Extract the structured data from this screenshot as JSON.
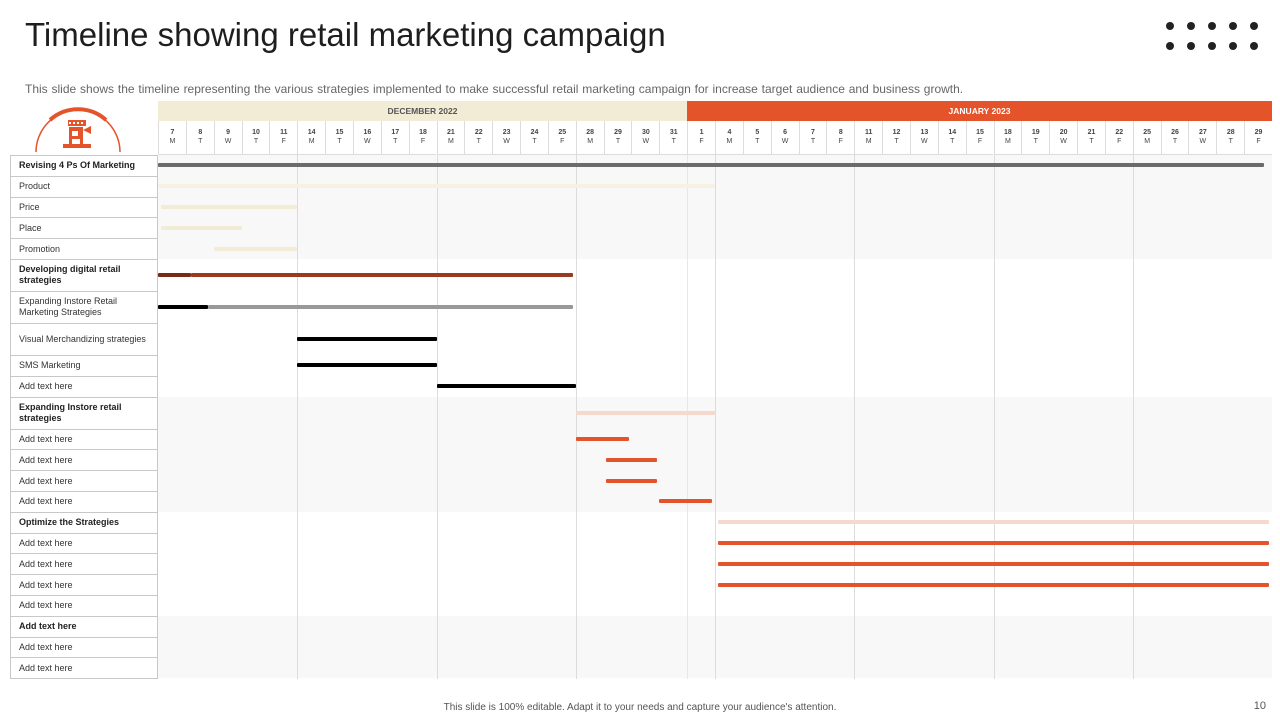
{
  "slide": {
    "title": "Timeline showing retail marketing campaign",
    "subtitle": "This slide shows the timeline representing the various strategies implemented to make successful retail marketing campaign for increase target audience and business growth.",
    "footer": "This slide is 100% editable. Adapt it to your needs and capture your audience's attention.",
    "page_number": "10"
  },
  "colors": {
    "accent": "#e5532a",
    "accent_light": "#f6d8cc",
    "beige": "#f2ecd7",
    "dark_brown": "#9a3b1f",
    "dark_gray": "#6b6b6b",
    "mid_gray": "#999999",
    "black": "#000000"
  },
  "chart_data": {
    "type": "gantt",
    "months": [
      {
        "label": "DECEMBER 2022",
        "start_index": 0,
        "end_index": 18
      },
      {
        "label": "JANUARY  2023",
        "start_index": 19,
        "end_index": 39
      }
    ],
    "days": [
      {
        "d": "7",
        "w": "M"
      },
      {
        "d": "8",
        "w": "T"
      },
      {
        "d": "9",
        "w": "W"
      },
      {
        "d": "10",
        "w": "T"
      },
      {
        "d": "11",
        "w": "F"
      },
      {
        "d": "14",
        "w": "M"
      },
      {
        "d": "15",
        "w": "T"
      },
      {
        "d": "16",
        "w": "W"
      },
      {
        "d": "17",
        "w": "T"
      },
      {
        "d": "18",
        "w": "F"
      },
      {
        "d": "21",
        "w": "M"
      },
      {
        "d": "22",
        "w": "T"
      },
      {
        "d": "23",
        "w": "W"
      },
      {
        "d": "24",
        "w": "T"
      },
      {
        "d": "25",
        "w": "F"
      },
      {
        "d": "28",
        "w": "M"
      },
      {
        "d": "29",
        "w": "T"
      },
      {
        "d": "30",
        "w": "W"
      },
      {
        "d": "31",
        "w": "T"
      },
      {
        "d": "1",
        "w": "F"
      },
      {
        "d": "4",
        "w": "M"
      },
      {
        "d": "5",
        "w": "T"
      },
      {
        "d": "6",
        "w": "W"
      },
      {
        "d": "7",
        "w": "T"
      },
      {
        "d": "8",
        "w": "F"
      },
      {
        "d": "11",
        "w": "M"
      },
      {
        "d": "12",
        "w": "T"
      },
      {
        "d": "13",
        "w": "W"
      },
      {
        "d": "14",
        "w": "T"
      },
      {
        "d": "15",
        "w": "F"
      },
      {
        "d": "18",
        "w": "M"
      },
      {
        "d": "19",
        "w": "T"
      },
      {
        "d": "20",
        "w": "W"
      },
      {
        "d": "21",
        "w": "T"
      },
      {
        "d": "22",
        "w": "F"
      },
      {
        "d": "25",
        "w": "M"
      },
      {
        "d": "26",
        "w": "T"
      },
      {
        "d": "27",
        "w": "W"
      },
      {
        "d": "28",
        "w": "T"
      },
      {
        "d": "29",
        "w": "F"
      }
    ],
    "rows": [
      {
        "label": "Revising 4 Ps Of Marketing",
        "bold": true,
        "tall": false,
        "bars": [
          {
            "start": 0,
            "end": 39.7,
            "color": "#6b6b6b"
          }
        ]
      },
      {
        "label": "Product",
        "bold": false,
        "tall": false,
        "bars": [
          {
            "start": 0,
            "end": 20,
            "color": "#f7f1e3"
          }
        ]
      },
      {
        "label": "Price",
        "bold": false,
        "tall": false,
        "bars": [
          {
            "start": 0.1,
            "end": 5,
            "color": "#f2ecd7"
          }
        ]
      },
      {
        "label": "Place",
        "bold": false,
        "tall": false,
        "bars": [
          {
            "start": 0.1,
            "end": 3,
            "color": "#f2ecd7"
          }
        ]
      },
      {
        "label": "Promotion",
        "bold": false,
        "tall": false,
        "bars": [
          {
            "start": 2,
            "end": 5,
            "color": "#f2ecd7"
          }
        ]
      },
      {
        "label": "Developing digital retail strategies",
        "bold": true,
        "tall": true,
        "bars": [
          {
            "start": 0,
            "end": 1.2,
            "color": "#7a2a14"
          },
          {
            "start": 1.2,
            "end": 14.9,
            "color": "#9a3b1f"
          }
        ]
      },
      {
        "label": "Expanding Instore Retail Marketing Strategies",
        "bold": false,
        "tall": true,
        "bars": [
          {
            "start": 0,
            "end": 1.8,
            "color": "#000000"
          },
          {
            "start": 1.8,
            "end": 14.9,
            "color": "#999999"
          }
        ]
      },
      {
        "label": "Visual Merchandizing strategies",
        "bold": false,
        "tall": true,
        "bars": [
          {
            "start": 5,
            "end": 10,
            "color": "#000000"
          }
        ]
      },
      {
        "label": "SMS Marketing",
        "bold": false,
        "tall": false,
        "bars": [
          {
            "start": 5,
            "end": 10,
            "color": "#000000"
          }
        ]
      },
      {
        "label": "Add text here",
        "bold": false,
        "tall": false,
        "bars": [
          {
            "start": 10,
            "end": 15,
            "color": "#000000"
          }
        ]
      },
      {
        "label": "Expanding Instore retail strategies",
        "bold": true,
        "tall": true,
        "bars": [
          {
            "start": 15,
            "end": 20,
            "color": "#f6d8cc"
          }
        ]
      },
      {
        "label": "Add text here",
        "bold": false,
        "tall": false,
        "bars": [
          {
            "start": 15,
            "end": 16.9,
            "color": "#e5532a"
          }
        ]
      },
      {
        "label": "Add text here",
        "bold": false,
        "tall": false,
        "bars": [
          {
            "start": 16.1,
            "end": 17.9,
            "color": "#e5532a"
          }
        ]
      },
      {
        "label": "Add text here",
        "bold": false,
        "tall": false,
        "bars": [
          {
            "start": 16.1,
            "end": 17.9,
            "color": "#e5532a"
          }
        ]
      },
      {
        "label": "Add text here",
        "bold": false,
        "tall": false,
        "bars": [
          {
            "start": 18,
            "end": 19.9,
            "color": "#e5532a"
          }
        ]
      },
      {
        "label": "Optimize the Strategies",
        "bold": true,
        "tall": false,
        "bars": [
          {
            "start": 20.1,
            "end": 39.9,
            "color": "#f6d8cc"
          }
        ]
      },
      {
        "label": "Add text here",
        "bold": false,
        "tall": false,
        "bars": [
          {
            "start": 20.1,
            "end": 39.9,
            "color": "#e5532a"
          }
        ]
      },
      {
        "label": "Add text here",
        "bold": false,
        "tall": false,
        "bars": [
          {
            "start": 20.1,
            "end": 39.9,
            "color": "#e5532a"
          }
        ]
      },
      {
        "label": "Add text here",
        "bold": false,
        "tall": false,
        "bars": [
          {
            "start": 20.1,
            "end": 39.9,
            "color": "#e5532a"
          }
        ]
      },
      {
        "label": "Add text here",
        "bold": false,
        "tall": false,
        "bars": []
      },
      {
        "label": "Add  text here",
        "bold": true,
        "tall": false,
        "bars": []
      },
      {
        "label": "Add text here",
        "bold": false,
        "tall": false,
        "bars": []
      },
      {
        "label": "Add text here",
        "bold": false,
        "tall": false,
        "bars": []
      }
    ],
    "groups": [
      {
        "first_row": 0,
        "last_row": 4,
        "shaded": true
      },
      {
        "first_row": 5,
        "last_row": 9,
        "shaded": false
      },
      {
        "first_row": 10,
        "last_row": 14,
        "shaded": true
      },
      {
        "first_row": 15,
        "last_row": 19,
        "shaded": false
      },
      {
        "first_row": 20,
        "last_row": 22,
        "shaded": true
      }
    ]
  }
}
